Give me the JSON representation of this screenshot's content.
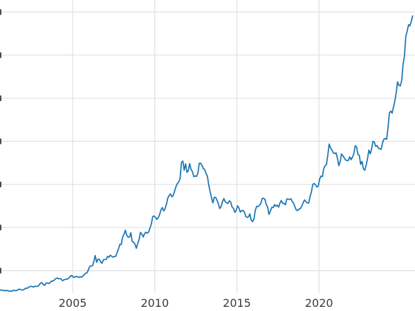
{
  "figure": {
    "background": "#ffffff",
    "line_color": "#1f77b4",
    "grid_color": "#e0e0e0",
    "tick_label_color": "#3a3a3a",
    "tick_label_font_px": 16
  },
  "chart_data": {
    "type": "line",
    "title": "",
    "xlabel": "",
    "ylabel": "",
    "grid": true,
    "legend": false,
    "xlim": [
      2000.57,
      2025.85
    ],
    "ylim": [
      240,
      3640
    ],
    "xticks": [
      2005,
      2010,
      2015,
      2020
    ],
    "xtick_labels": [
      "2005",
      "2010",
      "2015",
      "2020"
    ],
    "ygridlines": [
      500,
      1000,
      1500,
      2000,
      2500,
      3000,
      3500
    ],
    "y_tick_labels_cropped": true,
    "x_start": 2000.54,
    "x_step_years": 0.0833333,
    "values": [
      281,
      274,
      273,
      270,
      266,
      272,
      266,
      262,
      263,
      260,
      272,
      270,
      267,
      272,
      284,
      283,
      276,
      276,
      282,
      296,
      294,
      303,
      314,
      318,
      313,
      310,
      319,
      317,
      319,
      333,
      357,
      359,
      340,
      328,
      355,
      356,
      351,
      360,
      379,
      378,
      389,
      407,
      414,
      405,
      408,
      403,
      383,
      392,
      398,
      400,
      405,
      420,
      439,
      442,
      424,
      423,
      434,
      429,
      421,
      430,
      424,
      437,
      456,
      470,
      476,
      510,
      550,
      555,
      557,
      611,
      675,
      596,
      633,
      632,
      599,
      586,
      627,
      629,
      631,
      665,
      655,
      679,
      667,
      655,
      665,
      665,
      713,
      754,
      806,
      803,
      890,
      922,
      968,
      910,
      889,
      889,
      940,
      839,
      829,
      807,
      760,
      816,
      858,
      943,
      924,
      890,
      928,
      946,
      934,
      949,
      996,
      1043,
      1127,
      1134,
      1118,
      1095,
      1113,
      1149,
      1205,
      1233,
      1193,
      1216,
      1271,
      1342,
      1370,
      1391,
      1356,
      1373,
      1424,
      1473,
      1511,
      1529,
      1573,
      1756,
      1772,
      1666,
      1739,
      1640,
      1656,
      1743,
      1674,
      1650,
      1591,
      1598,
      1594,
      1630,
      1745,
      1747,
      1721,
      1684,
      1671,
      1628,
      1593,
      1487,
      1414,
      1343,
      1286,
      1351,
      1348,
      1316,
      1275,
      1221,
      1244,
      1300,
      1336,
      1299,
      1288,
      1279,
      1311,
      1296,
      1238,
      1222,
      1176,
      1200,
      1251,
      1227,
      1178,
      1197,
      1198,
      1181,
      1130,
      1117,
      1124,
      1159,
      1086,
      1068,
      1097,
      1200,
      1246,
      1242,
      1260,
      1276,
      1337,
      1340,
      1327,
      1266,
      1238,
      1152,
      1192,
      1234,
      1231,
      1266,
      1246,
      1260,
      1236,
      1283,
      1314,
      1280,
      1281,
      1264,
      1331,
      1330,
      1325,
      1334,
      1303,
      1281,
      1238,
      1201,
      1198,
      1215,
      1221,
      1250,
      1291,
      1320,
      1301,
      1286,
      1284,
      1359,
      1413,
      1500,
      1511,
      1495,
      1471,
      1479,
      1561,
      1597,
      1591,
      1683,
      1716,
      1732,
      1843,
      1969,
      1922,
      1900,
      1866,
      1858,
      1867,
      1808,
      1718,
      1762,
      1853,
      1835,
      1807,
      1784,
      1777,
      1777,
      1820,
      1787,
      1817,
      1856,
      1948,
      1937,
      1848,
      1837,
      1733,
      1766,
      1681,
      1665,
      1725,
      1797,
      1898,
      1855,
      1913,
      2000,
      1992,
      1942,
      1951,
      1918,
      1916,
      1907,
      1984,
      2026,
      2034,
      2023,
      2158,
      2330,
      2351,
      2327,
      2398,
      2470,
      2568,
      2690,
      2651,
      2643,
      2708,
      2897,
      2983,
      3218,
      3280,
      3353,
      3340,
      3390,
      3455
    ]
  }
}
